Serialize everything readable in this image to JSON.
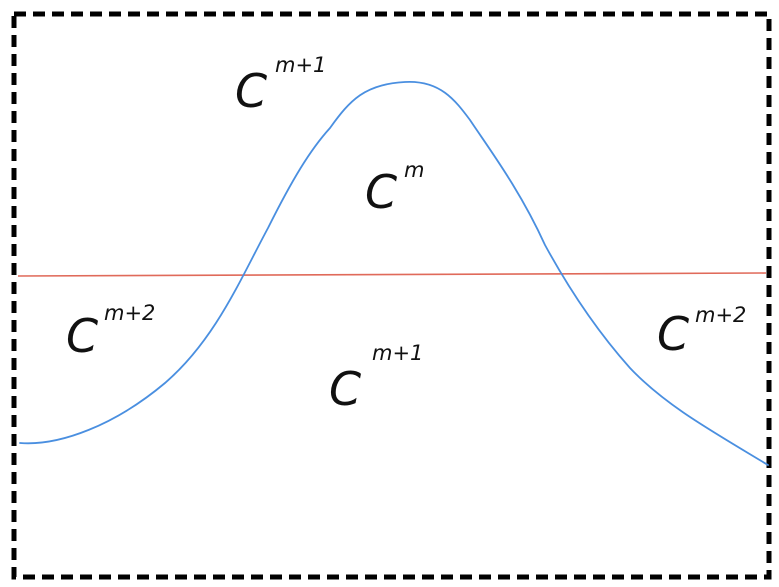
{
  "diagram": {
    "labels": {
      "top_left": {
        "base": "C",
        "superscript": "m+1"
      },
      "inside_peak": {
        "base": "C",
        "superscript": "m"
      },
      "left_lower": {
        "base": "C",
        "superscript": "m+2"
      },
      "center_lower": {
        "base": "C",
        "superscript": "m+1"
      },
      "right_lower": {
        "base": "C",
        "superscript": "m+2"
      }
    },
    "colors": {
      "frame": "#000000",
      "curve": "#4a8fe0",
      "horizontal_line": "#e06a5a",
      "text": "#111111"
    }
  }
}
